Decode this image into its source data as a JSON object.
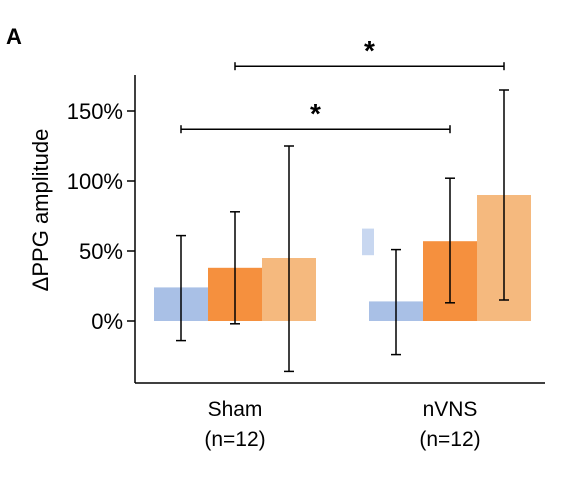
{
  "panel_label": "A",
  "chart_data": {
    "type": "bar",
    "ylabel": "ΔPPG amplitude",
    "xlabel": "",
    "ylim": [
      -45,
      175
    ],
    "yticks": [
      0,
      50,
      100,
      150
    ],
    "ytick_labels": [
      "0%",
      "50%",
      "100%",
      "150%"
    ],
    "categories": [
      {
        "line1": "Sham",
        "line2": "(n=12)"
      },
      {
        "line1": "nVNS",
        "line2": "(n=12)"
      }
    ],
    "series": [
      {
        "color": "#a9c0e6",
        "values": [
          24,
          14
        ],
        "error_low": [
          -14,
          -24
        ],
        "error_high": [
          61,
          51
        ]
      },
      {
        "color": "#f5903e",
        "values": [
          38,
          57
        ],
        "error_low": [
          -2,
          13
        ],
        "error_high": [
          78,
          102
        ]
      },
      {
        "color": "#f5b97e",
        "values": [
          45,
          90
        ],
        "error_low": [
          -36,
          15
        ],
        "error_high": [
          125,
          165
        ]
      }
    ],
    "extra_swatch": {
      "color": "#c8d7f0",
      "y_low": 47,
      "y_high": 66
    },
    "significance": [
      {
        "label": "*",
        "from_series": 0,
        "from_cat": 0,
        "to_series": 1,
        "to_cat": 1,
        "y": 137
      },
      {
        "label": "*",
        "from_series": 1,
        "from_cat": 0,
        "to_series": 2,
        "to_cat": 1,
        "y": 182
      }
    ],
    "grid": false,
    "legend": "none"
  }
}
